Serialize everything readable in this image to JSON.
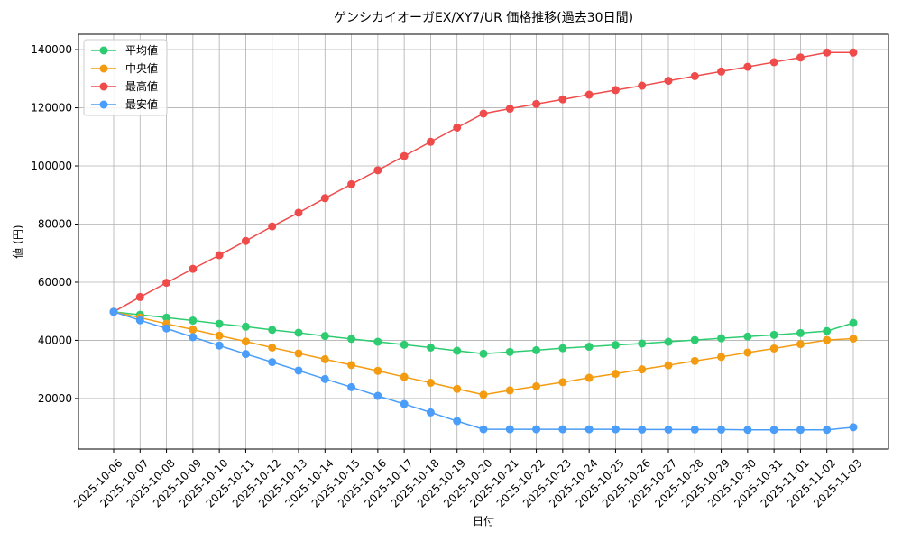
{
  "chart_data": {
    "type": "line",
    "title": "ゲンシカイオーガEX/XY7/UR 価格推移(過去30日間)",
    "x_label": "日付",
    "y_label": "値 (円)",
    "categories": [
      "2025-10-06",
      "2025-10-07",
      "2025-10-08",
      "2025-10-09",
      "2025-10-10",
      "2025-10-11",
      "2025-10-12",
      "2025-10-13",
      "2025-10-14",
      "2025-10-15",
      "2025-10-16",
      "2025-10-17",
      "2025-10-18",
      "2025-10-19",
      "2025-10-20",
      "2025-10-21",
      "2025-10-22",
      "2025-10-23",
      "2025-10-24",
      "2025-10-25",
      "2025-10-26",
      "2025-10-27",
      "2025-10-28",
      "2025-10-29",
      "2025-10-30",
      "2025-10-31",
      "2025-11-01",
      "2025-11-02",
      "2025-11-03"
    ],
    "series": [
      {
        "name": "平均値",
        "color": "#2ecc71",
        "values": [
          49800,
          48800,
          47800,
          46800,
          45700,
          44700,
          43600,
          42600,
          41500,
          40500,
          39500,
          38500,
          37500,
          36400,
          35400,
          36000,
          36600,
          37300,
          37800,
          38400,
          38900,
          39500,
          40100,
          40700,
          41300,
          41900,
          42500,
          43200,
          46000
        ]
      },
      {
        "name": "中央値",
        "color": "#f39c12",
        "values": [
          49800,
          47800,
          45700,
          43700,
          41600,
          39600,
          37500,
          35500,
          33500,
          31500,
          29500,
          27400,
          25400,
          23300,
          21300,
          22800,
          24200,
          25600,
          27100,
          28500,
          30000,
          31400,
          32900,
          34300,
          35800,
          37200,
          38700,
          40100,
          40600
        ]
      },
      {
        "name": "最高値",
        "color": "#ef4b4b",
        "values": [
          49800,
          54900,
          59800,
          64600,
          69300,
          74200,
          79200,
          83900,
          88900,
          93700,
          98500,
          103400,
          108300,
          113200,
          118000,
          119700,
          121300,
          122900,
          124500,
          126100,
          127600,
          129300,
          130900,
          132500,
          134100,
          135700,
          137300,
          139000,
          139000
        ]
      },
      {
        "name": "最安値",
        "color": "#4a9df8",
        "values": [
          49800,
          46900,
          44100,
          41100,
          38200,
          35300,
          32500,
          29600,
          26700,
          23900,
          20900,
          18100,
          15200,
          12200,
          9400,
          9400,
          9400,
          9400,
          9400,
          9400,
          9300,
          9300,
          9300,
          9300,
          9200,
          9200,
          9200,
          9200,
          10100
        ]
      }
    ],
    "ylim": [
      2600,
      145300
    ],
    "yticks": [
      20000,
      40000,
      60000,
      80000,
      100000,
      120000,
      140000
    ],
    "grid": true,
    "legend": "upper-left"
  }
}
